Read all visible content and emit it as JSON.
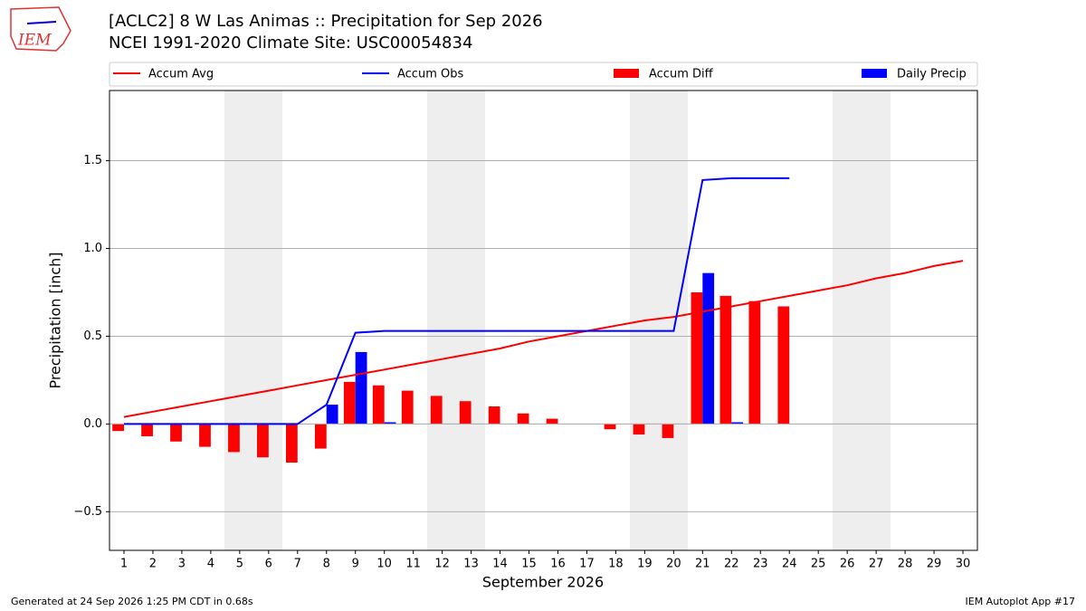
{
  "logo": "IEM",
  "footer": {
    "left": "Generated at 24 Sep 2026 1:25 PM CDT in 0.68s",
    "right": "IEM Autoplot App #17"
  },
  "chart_data": {
    "type": "bar",
    "title": "[ACLC2] 8 W Las Animas :: Precipitation for Sep 2026",
    "subtitle": "NCEI 1991-2020 Climate Site: USC00054834",
    "x_label": "September 2026",
    "y_label": "Precipitation [inch]",
    "x": [
      1,
      2,
      3,
      4,
      5,
      6,
      7,
      8,
      9,
      10,
      11,
      12,
      13,
      14,
      15,
      16,
      17,
      18,
      19,
      20,
      21,
      22,
      23,
      24,
      25,
      26,
      27,
      28,
      29,
      30
    ],
    "xlim": [
      0.5,
      30.5
    ],
    "xticks": [
      1,
      2,
      3,
      4,
      5,
      6,
      7,
      8,
      9,
      10,
      11,
      12,
      13,
      14,
      15,
      16,
      17,
      18,
      19,
      20,
      21,
      22,
      23,
      24,
      25,
      26,
      27,
      28,
      29,
      30
    ],
    "ylim": [
      -0.72,
      1.9
    ],
    "yticks": [
      {
        "value": -0.5,
        "label": "−0.5"
      },
      {
        "value": 0,
        "label": "0.0"
      },
      0.5,
      {
        "value": 1,
        "label": "1.0"
      },
      1.5
    ],
    "grid": "y",
    "series": [
      {
        "name": "Accum Avg",
        "type": "line",
        "color": "#ff0000",
        "values": [
          0.04,
          0.07,
          0.1,
          0.13,
          0.16,
          0.19,
          0.22,
          0.25,
          0.28,
          0.31,
          0.34,
          0.37,
          0.4,
          0.43,
          0.47,
          0.5,
          0.53,
          0.56,
          0.59,
          0.61,
          0.64,
          0.67,
          0.7,
          0.73,
          0.76,
          0.79,
          0.83,
          0.86,
          0.9,
          0.93
        ]
      },
      {
        "name": "Accum Obs",
        "type": "line",
        "color": "#0000ff",
        "values": [
          0,
          0,
          0,
          0,
          0,
          0,
          0,
          0.11,
          0.52,
          0.53,
          0.53,
          0.53,
          0.53,
          0.53,
          0.53,
          0.53,
          0.53,
          0.53,
          0.53,
          0.53,
          1.39,
          1.4,
          1.4,
          1.4,
          null,
          null,
          null,
          null,
          null,
          null
        ]
      },
      {
        "name": "Accum Diff",
        "type": "bar",
        "color": "#ff0000",
        "values": [
          -0.04,
          -0.07,
          -0.1,
          -0.13,
          -0.16,
          -0.19,
          -0.22,
          -0.14,
          0.24,
          0.22,
          0.19,
          0.16,
          0.13,
          0.1,
          0.06,
          0.03,
          0,
          -0.03,
          -0.06,
          -0.08,
          0.75,
          0.73,
          0.7,
          0.67,
          null,
          null,
          null,
          null,
          null,
          null
        ]
      },
      {
        "name": "Daily Precip",
        "type": "bar",
        "color": "#0000ff",
        "values": [
          0,
          0,
          0,
          0,
          0,
          0,
          0,
          0.11,
          0.41,
          0.01,
          0,
          0,
          0,
          0,
          0,
          0,
          0,
          0,
          0,
          0,
          0.86,
          0.01,
          0,
          0,
          null,
          null,
          null,
          null,
          null,
          null
        ]
      }
    ]
  }
}
